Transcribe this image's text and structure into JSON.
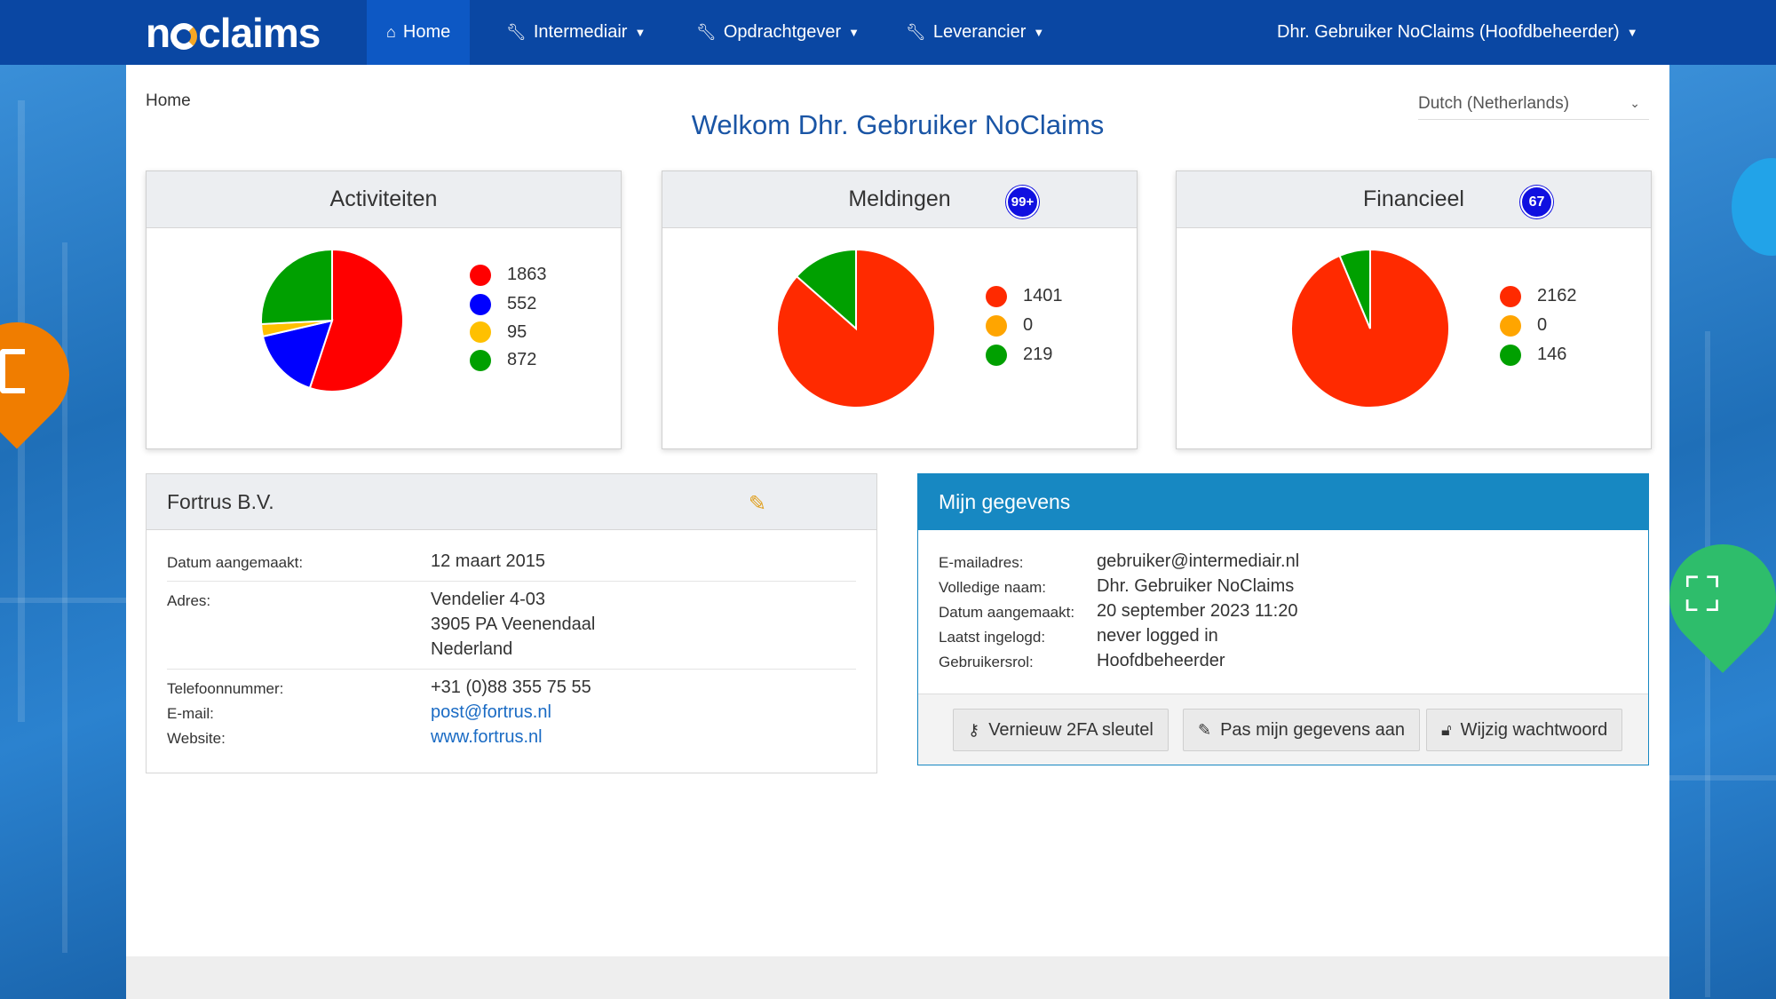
{
  "brand": {
    "logo_prefix": "n",
    "logo_suffix": "claims"
  },
  "nav": {
    "home": "Home",
    "intermediair": "Intermediair",
    "opdrachtgever": "Opdrachtgever",
    "leverancier": "Leverancier",
    "user": "Dhr. Gebruiker NoClaims (Hoofdbeheerder)"
  },
  "breadcrumb": "Home",
  "language": "Dutch (Netherlands)",
  "welcome": "Welkom Dhr. Gebruiker NoClaims",
  "cards": [
    {
      "title": "Activiteiten",
      "badge": null,
      "items": [
        {
          "value": "1863",
          "color": "#ff0000"
        },
        {
          "value": "552",
          "color": "#0000ff"
        },
        {
          "value": "95",
          "color": "#ffc000"
        },
        {
          "value": "872",
          "color": "#00a000"
        }
      ]
    },
    {
      "title": "Meldingen",
      "badge": "99+",
      "items": [
        {
          "value": "1401",
          "color": "#ff2a00"
        },
        {
          "value": "0",
          "color": "#ffa500"
        },
        {
          "value": "219",
          "color": "#00a000"
        }
      ]
    },
    {
      "title": "Financieel",
      "badge": "67",
      "items": [
        {
          "value": "2162",
          "color": "#ff2a00"
        },
        {
          "value": "0",
          "color": "#ffa500"
        },
        {
          "value": "146",
          "color": "#00a000"
        }
      ]
    }
  ],
  "company": {
    "title": "Fortrus B.V.",
    "date_label": "Datum aangemaakt:",
    "date": "12 maart 2015",
    "address_label": "Adres:",
    "address_line1": "Vendelier 4-03",
    "address_line2": "3905 PA Veenendaal",
    "address_line3": "Nederland",
    "phone_label": "Telefoonnummer:",
    "phone": "+31 (0)88 355 75 55",
    "email_label": "E-mail:",
    "email": "post@fortrus.nl",
    "website_label": "Website:",
    "website": "www.fortrus.nl"
  },
  "mine": {
    "title": "Mijn gegevens",
    "email_label": "E-mailadres:",
    "email": "gebruiker@intermediair.nl",
    "name_label": "Volledige naam:",
    "name": "Dhr. Gebruiker NoClaims",
    "created_label": "Datum aangemaakt:",
    "created": "20 september 2023 11:20",
    "last_login_label": "Laatst ingelogd:",
    "last_login": "never logged in",
    "role_label": "Gebruikersrol:",
    "role": "Hoofdbeheerder",
    "btn_2fa": "Vernieuw 2FA sleutel",
    "btn_edit": "Pas mijn gegevens aan",
    "btn_password": "Wijzig wachtwoord"
  }
}
